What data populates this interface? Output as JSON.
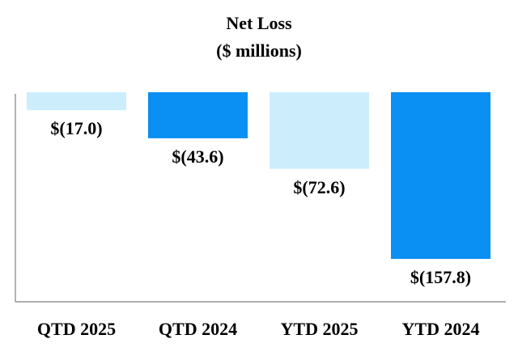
{
  "chart_data": {
    "type": "bar",
    "title": "Net Loss",
    "subtitle": "($ millions)",
    "categories": [
      "QTD 2025",
      "QTD 2024",
      "YTD 2025",
      "YTD 2024"
    ],
    "values": [
      -17.0,
      -43.6,
      -72.6,
      -157.8
    ],
    "data_labels": [
      "$(17.0)",
      "$(43.6)",
      "$(72.6)",
      "$(157.8)"
    ],
    "colors": [
      "#CCEEFC",
      "#0A8FF2",
      "#CCEEFC",
      "#0A8FF2"
    ],
    "xlabel": "",
    "ylabel": "",
    "ylim": [
      -190,
      0
    ],
    "grid": false,
    "legend": "none"
  }
}
